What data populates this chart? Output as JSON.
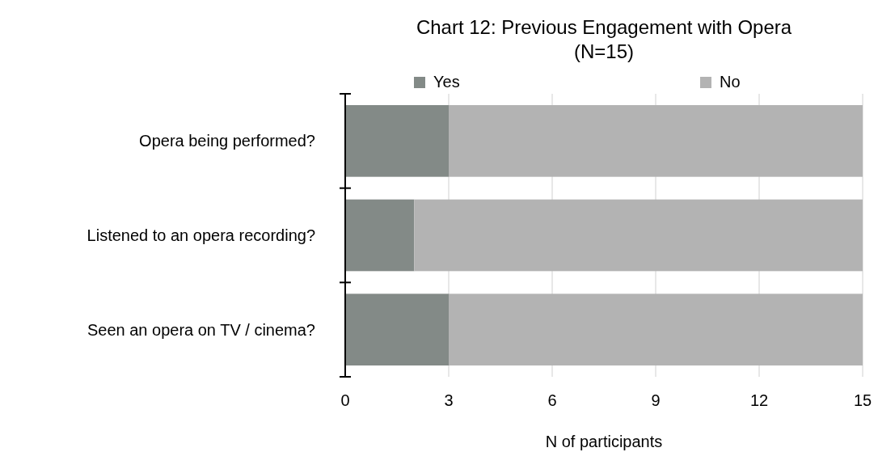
{
  "chart_data": {
    "type": "bar",
    "orientation": "horizontal",
    "stacked": true,
    "title": "Chart 12: Previous Engagement with Opera",
    "subtitle": "(N=15)",
    "xlabel": "N of participants",
    "categories": [
      "Opera being performed?",
      "Listened to an opera recording?",
      "Seen an opera on TV / cinema?"
    ],
    "series": [
      {
        "name": "Yes",
        "color": "#838a87",
        "values": [
          3,
          2,
          3
        ]
      },
      {
        "name": "No",
        "color": "#b3b3b3",
        "values": [
          12,
          13,
          12
        ]
      }
    ],
    "xlim": [
      0,
      15
    ],
    "xticks": [
      0,
      3,
      6,
      9,
      12,
      15
    ],
    "grid": "x",
    "legend": "top"
  }
}
